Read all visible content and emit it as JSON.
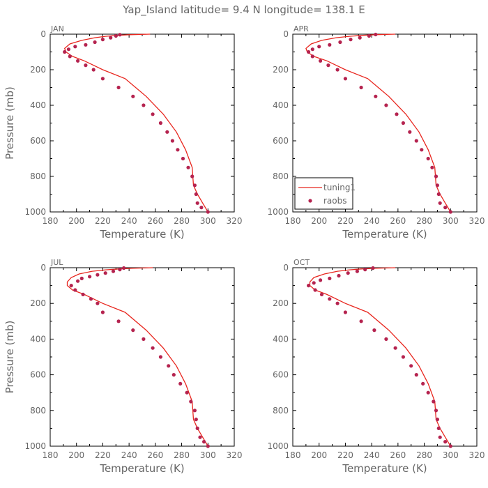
{
  "figure_title": "Yap_Island   latitude=  9.4  N  longitude=  138.1  E",
  "colors": {
    "model_line": "#e8261e",
    "obs_marker": "#b5234f",
    "axis": "#000000",
    "text": "#666666"
  },
  "legend": {
    "line_label": "tuning1",
    "marker_label": "raobs",
    "panel": "APR"
  },
  "chart_data": [
    {
      "type": "line",
      "panel": "JAN",
      "xlabel": "Temperature (K)",
      "ylabel": "Pressure (mb)",
      "xlim": [
        180,
        320
      ],
      "ylim": [
        0,
        1000
      ],
      "y_inverted": true,
      "xticks": [
        180,
        200,
        220,
        240,
        260,
        280,
        300,
        320
      ],
      "yticks": [
        0,
        200,
        400,
        600,
        800,
        1000
      ],
      "series": [
        {
          "name": "tuning1",
          "kind": "line",
          "x": [
            256,
            240,
            230,
            222,
            214,
            204,
            195,
            191,
            192,
            197,
            206,
            220,
            237,
            253,
            266,
            276,
            283,
            288,
            289,
            292,
            296,
            300
          ],
          "y": [
            0,
            3,
            7,
            12,
            20,
            35,
            55,
            80,
            100,
            125,
            150,
            200,
            250,
            350,
            450,
            550,
            650,
            750,
            850,
            900,
            950,
            1000
          ]
        },
        {
          "name": "raobs",
          "kind": "marker",
          "x": [
            233,
            230,
            226,
            220,
            214,
            207,
            199,
            194,
            191,
            195,
            201,
            207,
            213,
            220,
            232,
            243,
            251,
            258,
            264,
            269,
            273,
            277,
            281,
            285,
            288,
            290,
            291,
            292,
            295,
            300
          ],
          "y": [
            3,
            10,
            20,
            30,
            45,
            60,
            70,
            85,
            100,
            125,
            150,
            175,
            200,
            250,
            300,
            350,
            400,
            450,
            500,
            550,
            600,
            650,
            700,
            750,
            800,
            850,
            900,
            950,
            975,
            1000
          ]
        }
      ]
    },
    {
      "type": "line",
      "panel": "APR",
      "xlabel": "Temperature (K)",
      "ylabel": "",
      "xlim": [
        180,
        320
      ],
      "ylim": [
        0,
        1000
      ],
      "y_inverted": true,
      "xticks": [
        180,
        200,
        220,
        240,
        260,
        280,
        300,
        320
      ],
      "yticks": [
        0,
        200,
        400,
        600,
        800,
        1000
      ],
      "series": [
        {
          "name": "tuning1",
          "kind": "line",
          "x": [
            258,
            242,
            232,
            223,
            213,
            202,
            194,
            190,
            191,
            196,
            206,
            220,
            237,
            253,
            266,
            276,
            283,
            288,
            289,
            292,
            296,
            300
          ],
          "y": [
            0,
            3,
            7,
            12,
            20,
            35,
            55,
            80,
            100,
            125,
            150,
            200,
            250,
            350,
            450,
            550,
            650,
            750,
            850,
            900,
            950,
            1000
          ]
        },
        {
          "name": "raobs",
          "kind": "marker",
          "x": [
            243,
            238,
            231,
            224,
            216,
            208,
            200,
            195,
            192,
            195,
            201,
            207,
            214,
            220,
            232,
            243,
            251,
            259,
            264,
            269,
            274,
            278,
            283,
            286,
            289,
            290,
            291,
            292,
            296,
            300
          ],
          "y": [
            2,
            10,
            20,
            30,
            45,
            60,
            70,
            85,
            100,
            125,
            150,
            175,
            200,
            250,
            300,
            350,
            400,
            450,
            500,
            550,
            600,
            650,
            700,
            750,
            800,
            850,
            900,
            950,
            975,
            1000
          ]
        }
      ]
    },
    {
      "type": "line",
      "panel": "JUL",
      "xlabel": "Temperature (K)",
      "ylabel": "Pressure (mb)",
      "xlim": [
        180,
        320
      ],
      "ylim": [
        0,
        1000
      ],
      "y_inverted": true,
      "xticks": [
        180,
        200,
        220,
        240,
        260,
        280,
        300,
        320
      ],
      "yticks": [
        0,
        200,
        400,
        600,
        800,
        1000
      ],
      "series": [
        {
          "name": "tuning1",
          "kind": "line",
          "x": [
            258,
            242,
            232,
            222,
            212,
            202,
            196,
            193,
            193,
            197,
            206,
            220,
            237,
            253,
            266,
            276,
            283,
            288,
            289,
            292,
            296,
            300
          ],
          "y": [
            0,
            3,
            7,
            12,
            20,
            35,
            55,
            80,
            100,
            125,
            150,
            200,
            250,
            350,
            450,
            550,
            650,
            750,
            850,
            900,
            950,
            1000
          ]
        },
        {
          "name": "raobs",
          "kind": "marker",
          "x": [
            236,
            233,
            228,
            222,
            216,
            210,
            204,
            201,
            196,
            199,
            205,
            211,
            216,
            220,
            232,
            243,
            251,
            258,
            264,
            270,
            274,
            279,
            284,
            287,
            290,
            291,
            292,
            294,
            297,
            300
          ],
          "y": [
            2,
            10,
            20,
            30,
            40,
            50,
            60,
            75,
            100,
            125,
            150,
            175,
            200,
            250,
            300,
            350,
            400,
            450,
            500,
            550,
            600,
            650,
            700,
            750,
            800,
            850,
            900,
            950,
            975,
            1000
          ]
        }
      ]
    },
    {
      "type": "line",
      "panel": "OCT",
      "xlabel": "Temperature (K)",
      "ylabel": "",
      "xlim": [
        180,
        320
      ],
      "ylim": [
        0,
        1000
      ],
      "y_inverted": true,
      "xticks": [
        180,
        200,
        220,
        240,
        260,
        280,
        300,
        320
      ],
      "yticks": [
        0,
        200,
        400,
        600,
        800,
        1000
      ],
      "series": [
        {
          "name": "tuning1",
          "kind": "line",
          "x": [
            258,
            242,
            232,
            223,
            214,
            204,
            196,
            193,
            193,
            197,
            206,
            220,
            237,
            253,
            266,
            276,
            283,
            288,
            289,
            292,
            296,
            300
          ],
          "y": [
            0,
            3,
            7,
            12,
            20,
            35,
            55,
            80,
            100,
            125,
            150,
            200,
            250,
            350,
            450,
            550,
            650,
            750,
            850,
            900,
            950,
            1000
          ]
        },
        {
          "name": "raobs",
          "kind": "marker",
          "x": [
            241,
            235,
            229,
            222,
            215,
            208,
            201,
            196,
            192,
            197,
            202,
            208,
            214,
            220,
            232,
            242,
            251,
            258,
            264,
            270,
            274,
            279,
            283,
            287,
            289,
            290,
            291,
            292,
            296,
            300
          ],
          "y": [
            2,
            10,
            20,
            30,
            45,
            60,
            70,
            85,
            100,
            125,
            150,
            175,
            200,
            250,
            300,
            350,
            400,
            450,
            500,
            550,
            600,
            650,
            700,
            750,
            800,
            850,
            900,
            950,
            975,
            1000
          ]
        }
      ]
    }
  ]
}
